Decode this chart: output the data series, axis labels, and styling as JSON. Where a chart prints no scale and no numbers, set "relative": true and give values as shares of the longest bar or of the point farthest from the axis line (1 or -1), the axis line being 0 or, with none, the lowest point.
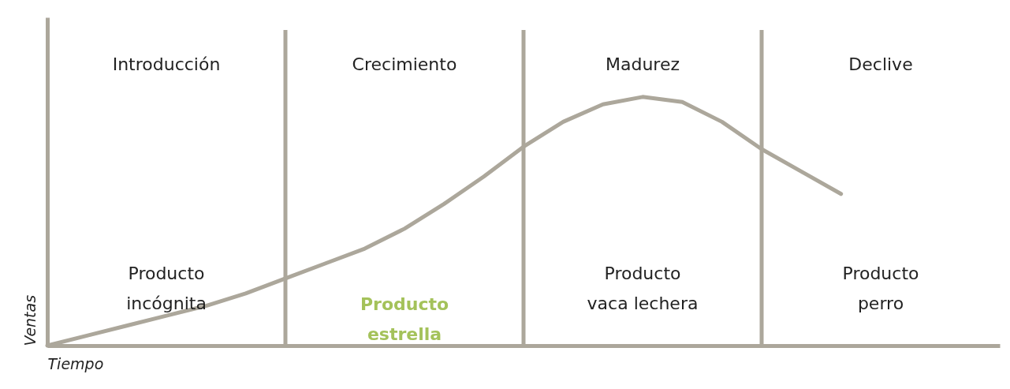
{
  "chart_data": {
    "type": "line",
    "relative": true,
    "xlabel": "Tiempo",
    "ylabel": "Ventas",
    "categories": [
      null,
      null,
      null,
      null,
      null,
      null,
      null,
      null,
      null,
      null,
      null,
      null,
      null,
      null,
      null,
      null,
      null,
      null,
      null,
      null,
      null,
      null,
      null,
      null,
      null
    ],
    "series": [
      {
        "color": "#aca79b",
        "values": [
          0,
          0.04,
          0.08,
          0.12,
          0.16,
          0.21,
          0.27,
          0.33,
          0.39,
          0.47,
          0.57,
          0.68,
          0.8,
          0.9,
          0.97,
          1,
          0.98,
          0.9,
          0.79,
          0.7,
          0.61,
          null,
          null,
          null,
          null
        ]
      }
    ],
    "annotations": [
      "Introducción",
      "Crecimiento",
      "Madurez",
      "Declive",
      "Producto\nincógnita",
      "Producto\nestrella",
      "Producto\nvaca lechera",
      "Producto\nperro"
    ],
    "grid": "x",
    "marker": "none",
    "line_style": "solid"
  }
}
